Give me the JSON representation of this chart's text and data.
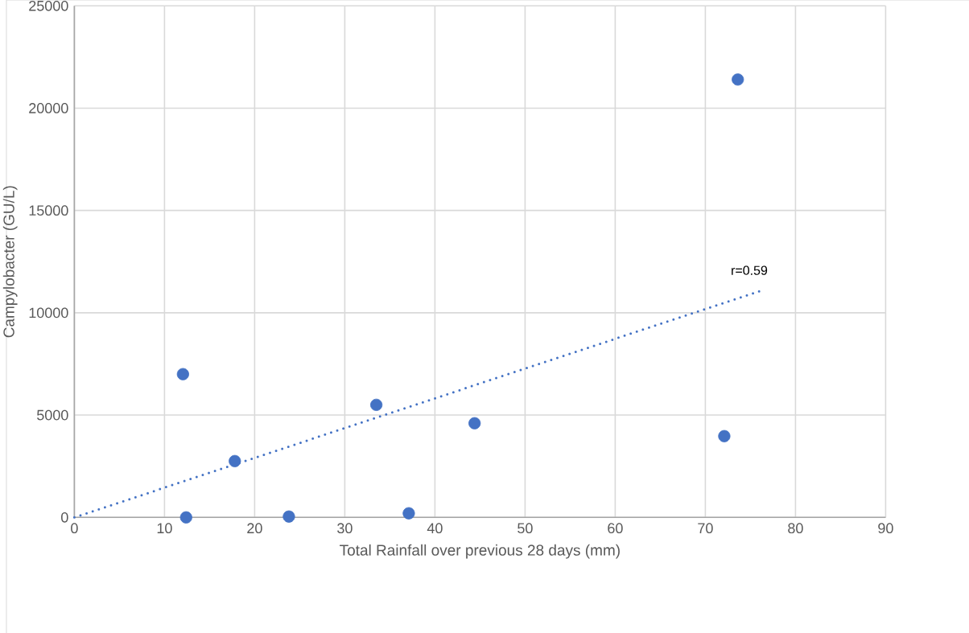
{
  "chart_data": {
    "type": "scatter",
    "xlabel": "Total Rainfall over previous 28 days (mm)",
    "ylabel": "Campylobacter (GU/L)",
    "xlim": [
      0,
      90
    ],
    "xticks": [
      0,
      10,
      20,
      30,
      40,
      50,
      60,
      70,
      80,
      90
    ],
    "ylim": [
      0,
      25000
    ],
    "yticks": [
      0,
      5000,
      10000,
      15000,
      20000,
      25000
    ],
    "grid": true,
    "marker": "circle",
    "series": [
      {
        "color": "#4472c4",
        "x": [
          12.05,
          12.4,
          17.8,
          23.8,
          33.5,
          37.1,
          44.4,
          72.1,
          73.6
        ],
        "values": [
          7000,
          0,
          2750,
          40,
          5500,
          200,
          4600,
          3970,
          21400
        ]
      },
      {
        "type": "line",
        "color": "#4472c4",
        "marker": "none",
        "line_style": "dotted",
        "x": [
          0,
          76.3
        ],
        "values": [
          0,
          11100
        ]
      }
    ],
    "annotations": [
      "r=0.59"
    ]
  }
}
